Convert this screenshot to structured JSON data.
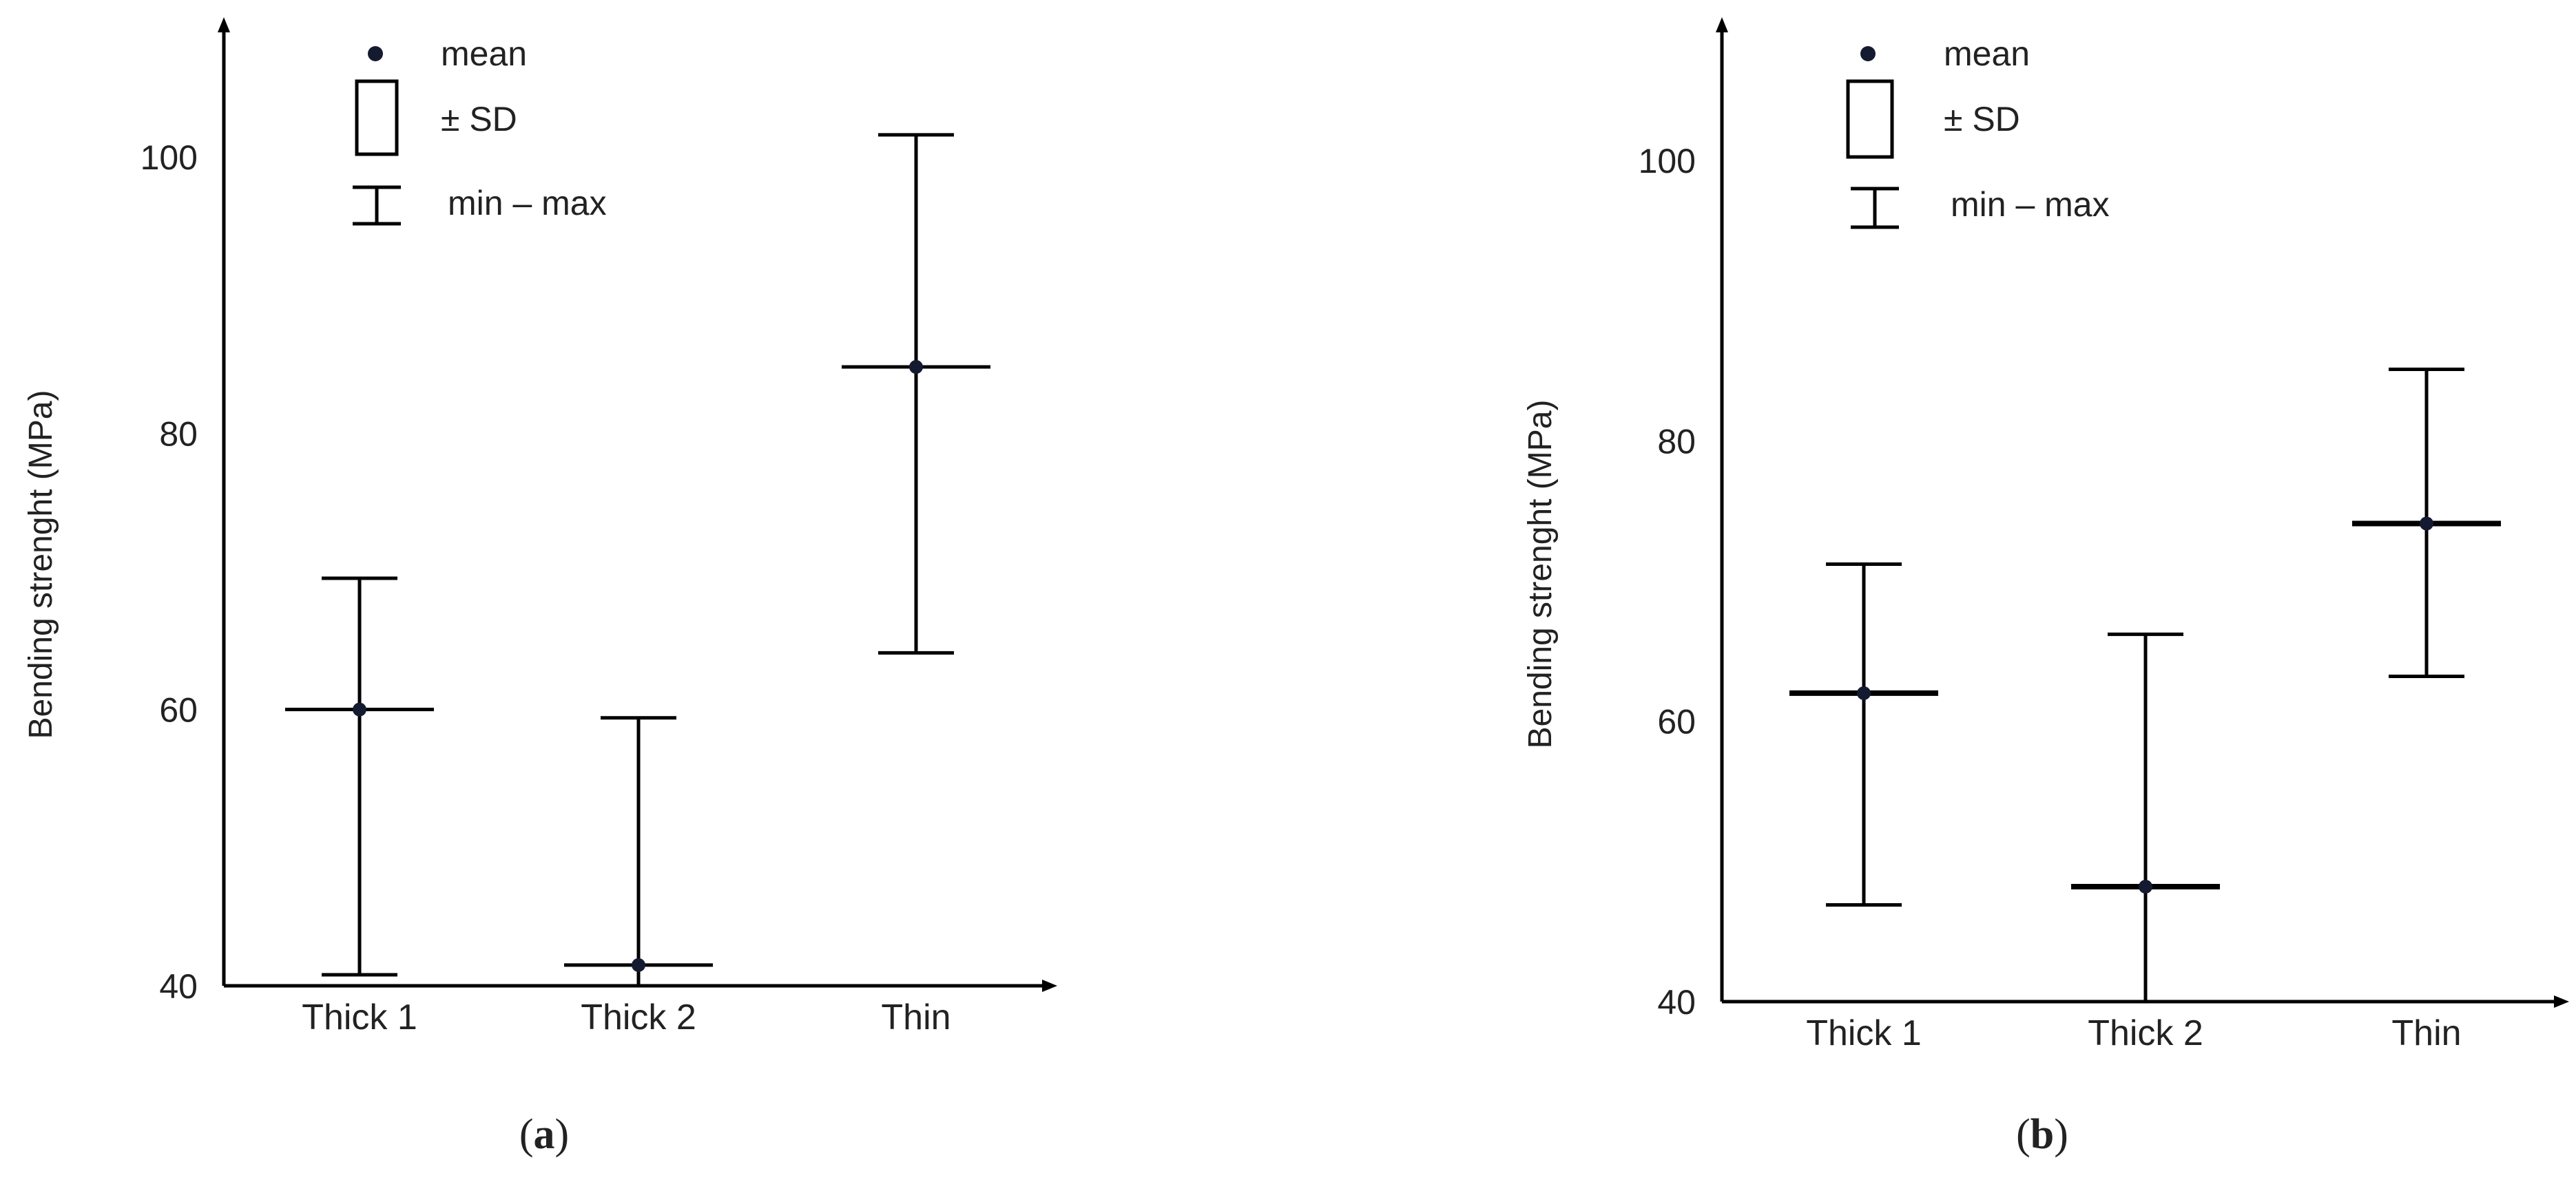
{
  "chart_data": [
    {
      "type": "boxplot",
      "panel_label": "a",
      "ylabel": "Bending strenght (MPa)",
      "yticks": [
        40,
        60,
        80,
        100
      ],
      "ylim": [
        40,
        110
      ],
      "categories": [
        "Thick 1",
        "Thick 2",
        "Thin"
      ],
      "mean": [
        60.0,
        41.5,
        84.8
      ],
      "min": [
        40.8,
        40.0,
        64.1
      ],
      "max": [
        69.5,
        59.4,
        101.6
      ],
      "legend": {
        "mean": "mean",
        "sd": "± SD",
        "range": "min – max"
      }
    },
    {
      "type": "boxplot",
      "panel_label": "b",
      "ylabel": "Bending strenght (MPa)",
      "yticks": [
        40,
        60,
        80,
        100
      ],
      "ylim": [
        40,
        110
      ],
      "categories": [
        "Thick 1",
        "Thick 2",
        "Thin"
      ],
      "mean": [
        62.0,
        48.2,
        74.1
      ],
      "min": [
        46.9,
        40.0,
        63.2
      ],
      "max": [
        71.2,
        66.2,
        85.1
      ],
      "legend": {
        "mean": "mean",
        "sd": "± SD",
        "range": "min – max"
      }
    }
  ],
  "colors": {
    "axis": "#000000",
    "mean_dot": "#141a30",
    "text": "#222222"
  }
}
